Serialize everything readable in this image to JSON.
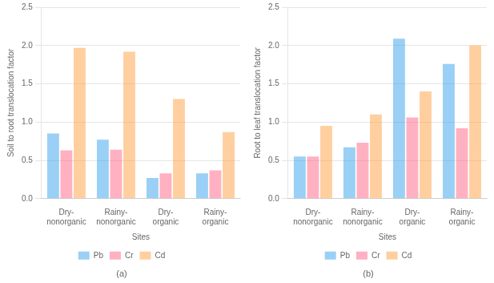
{
  "chart_data": [
    {
      "type": "bar",
      "title": "(a)",
      "xlabel": "Sites",
      "ylabel": "Soil to root translocation factor",
      "categories": [
        "Dry-\nnonorganic",
        "Rainy-\nnonorganic",
        "Dry-\norganic",
        "Rainy-\norganic"
      ],
      "series": [
        {
          "name": "Pb",
          "values": [
            0.85,
            0.77,
            0.27,
            0.33
          ]
        },
        {
          "name": "Cr",
          "values": [
            0.63,
            0.64,
            0.33,
            0.37
          ]
        },
        {
          "name": "Cd",
          "values": [
            1.97,
            1.92,
            1.3,
            0.87
          ]
        }
      ],
      "ylim": [
        0,
        2.5
      ],
      "yticks": [
        {
          "value": 0,
          "label": "0.0"
        },
        0.5,
        {
          "value": 1.0,
          "label": "1.0"
        },
        1.5,
        {
          "value": 2.0,
          "label": "2.0"
        },
        2.5
      ],
      "grid": true,
      "legend": "bottom"
    },
    {
      "type": "bar",
      "title": "(b)",
      "xlabel": "Sites",
      "ylabel": "Root to leaf translocation factor",
      "categories": [
        "Dry-\nnonorganic",
        "Rainy-\nnonorganic",
        "Dry-\norganic",
        "Rainy-\norganic"
      ],
      "series": [
        {
          "name": "Pb",
          "values": [
            0.55,
            0.67,
            2.09,
            1.76
          ]
        },
        {
          "name": "Cr",
          "values": [
            0.55,
            0.73,
            1.06,
            0.92
          ]
        },
        {
          "name": "Cd",
          "values": [
            0.95,
            1.1,
            1.4,
            2.0
          ]
        }
      ],
      "ylim": [
        0,
        2.5
      ],
      "yticks": [
        {
          "value": 0,
          "label": "0.0"
        },
        0.5,
        {
          "value": 1.0,
          "label": "1.0"
        },
        1.5,
        {
          "value": 2.0,
          "label": "2.0"
        },
        2.5
      ],
      "grid": true,
      "legend": "bottom"
    }
  ]
}
